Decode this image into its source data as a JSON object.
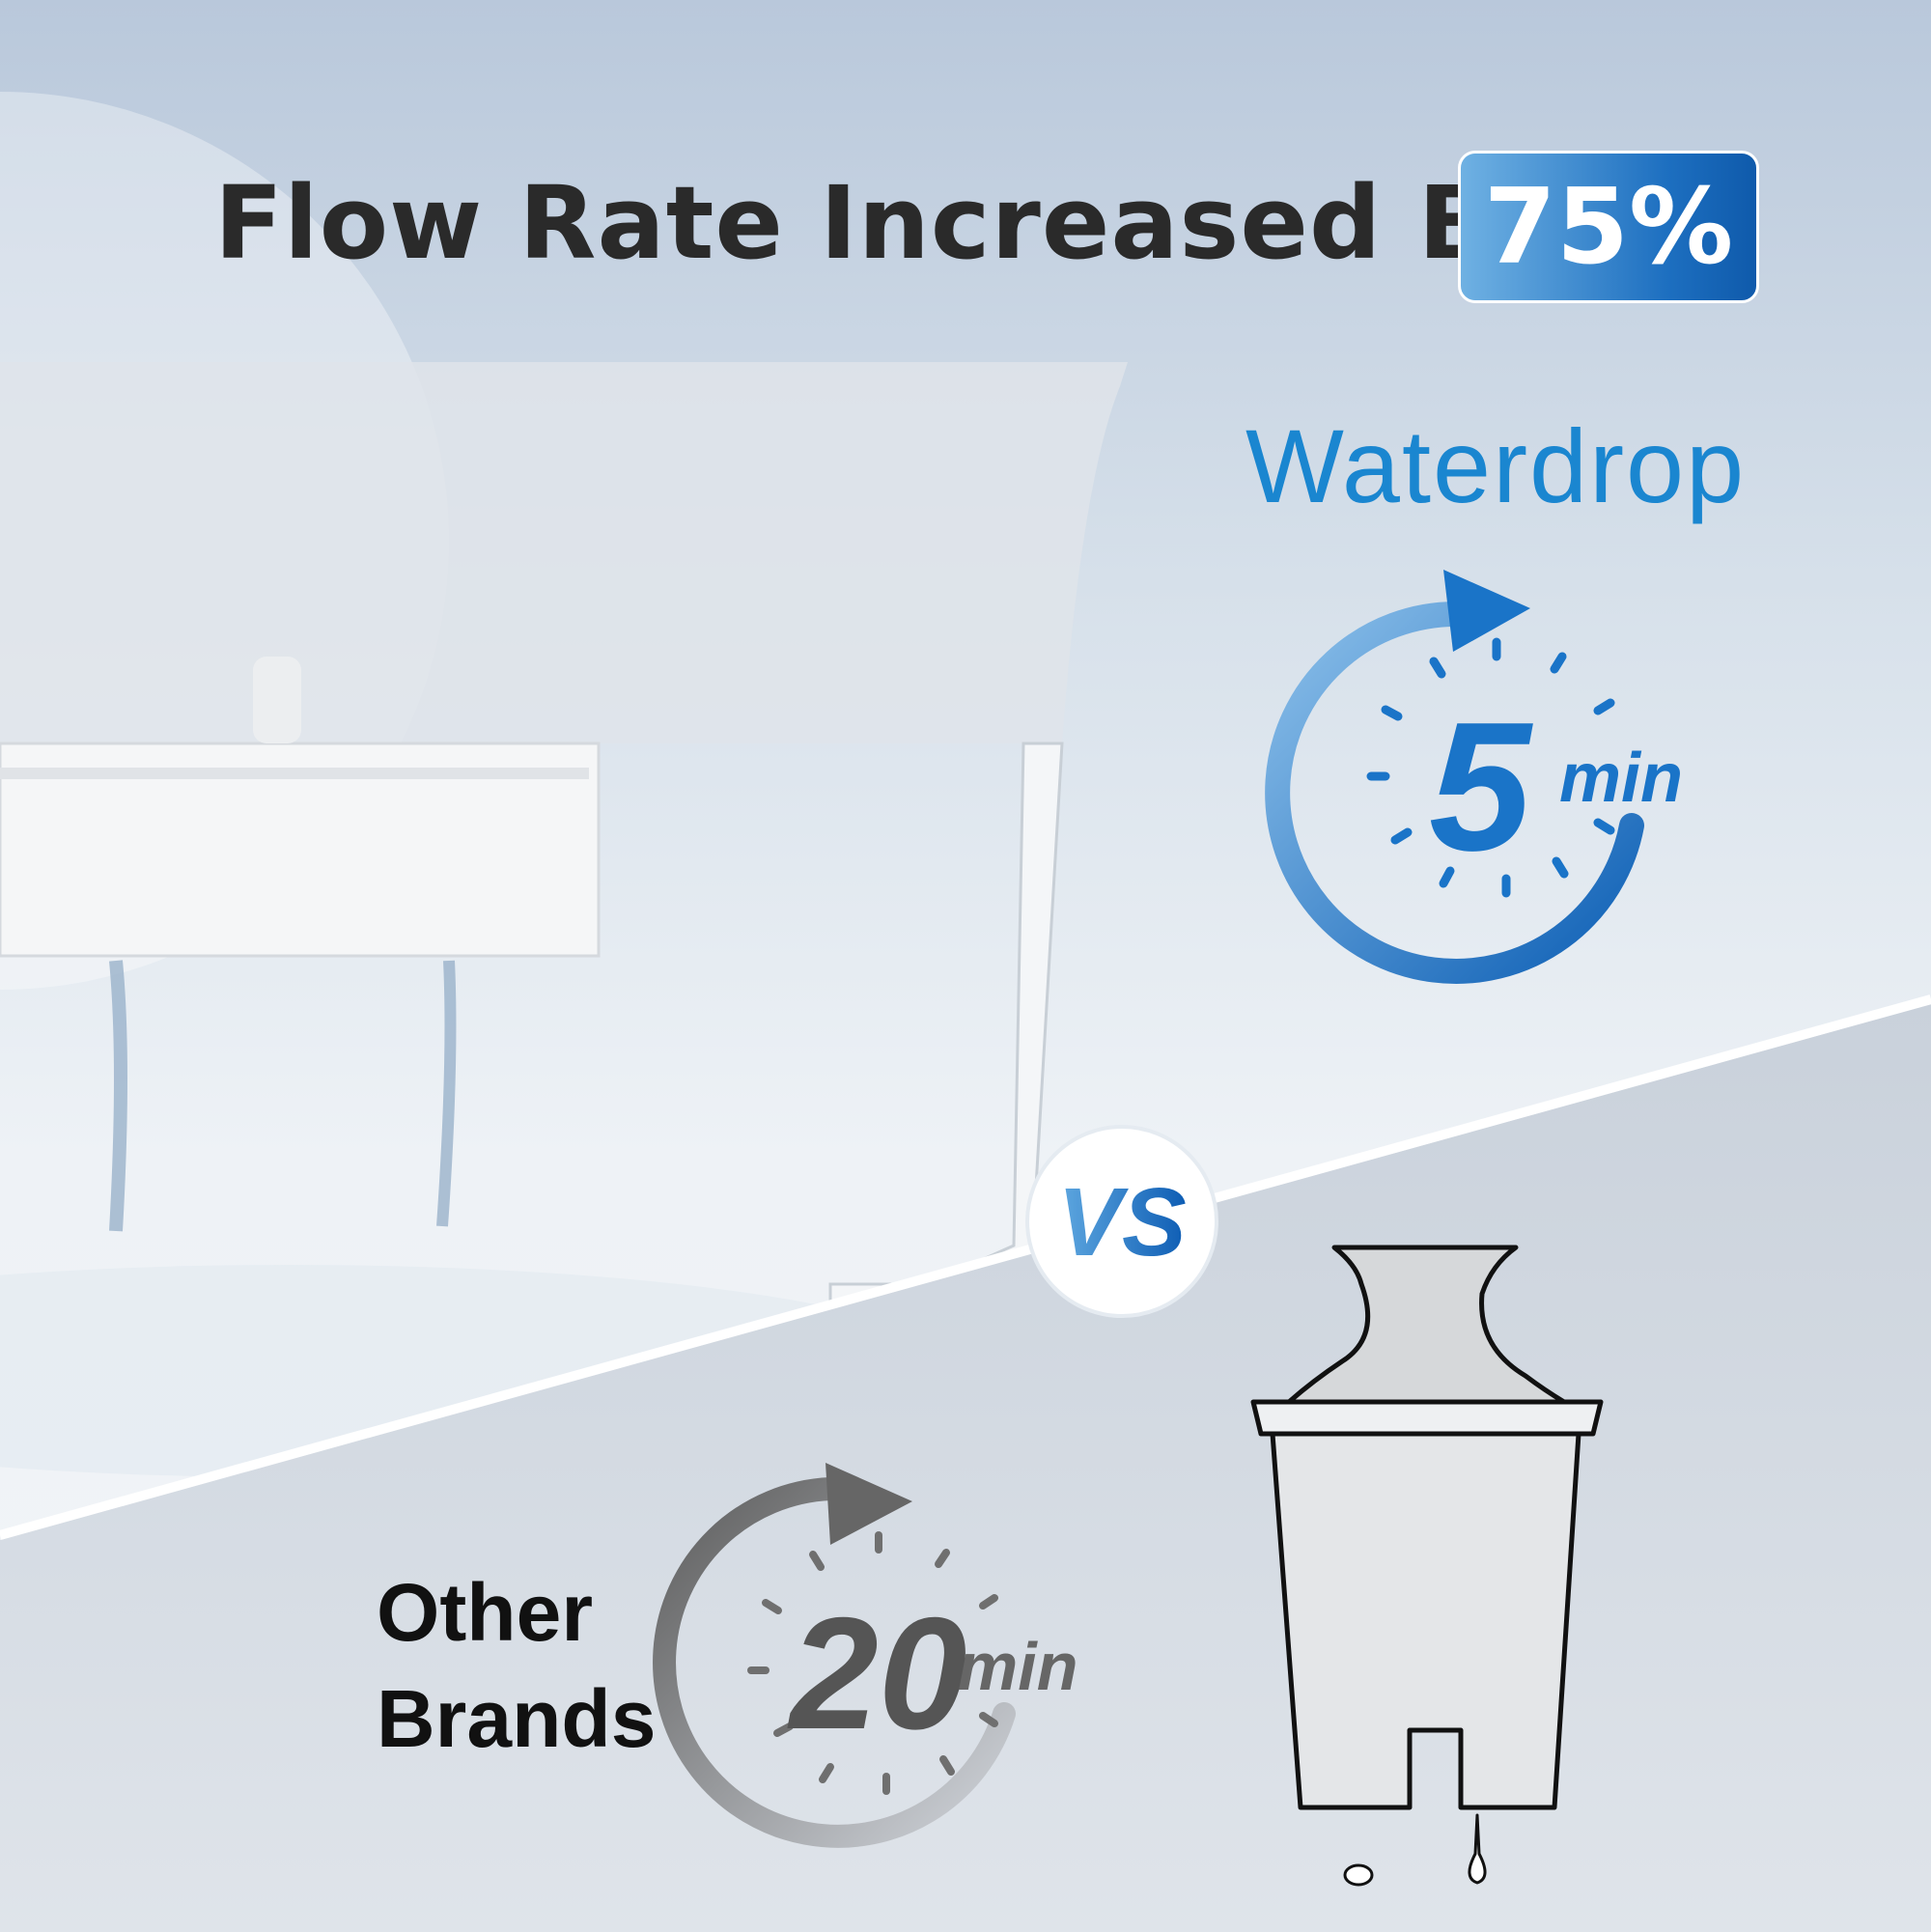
{
  "headline": {
    "text": "Flow Rate Increased By",
    "badge": "75%"
  },
  "brand": {
    "logo_text": "Waterdrop"
  },
  "waterdrop_timer": {
    "value": "5",
    "unit": "min",
    "color": "#1a74c8"
  },
  "versus": {
    "label": "VS"
  },
  "competitor": {
    "label_line1": "Other",
    "label_line2": "Brands"
  },
  "competitor_timer": {
    "value": "20",
    "unit": "min",
    "color": "#6f6f6f"
  }
}
